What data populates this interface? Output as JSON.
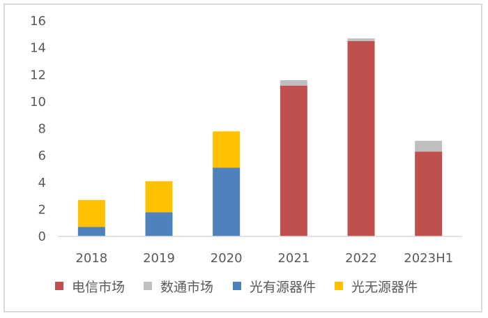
{
  "chart_data": {
    "type": "bar",
    "stacked": true,
    "title": "",
    "xlabel": "",
    "ylabel": "",
    "ylim": [
      0,
      16
    ],
    "yticks": [
      0,
      2,
      4,
      6,
      8,
      10,
      12,
      14,
      16
    ],
    "grid": false,
    "legend_position": "bottom",
    "categories": [
      "2018",
      "2019",
      "2020",
      "2021",
      "2022",
      "2023H1"
    ],
    "series": [
      {
        "name": "电信市场",
        "color": "#C0504D",
        "values": [
          0,
          0,
          0,
          11.2,
          14.5,
          6.3
        ]
      },
      {
        "name": "数通市场",
        "color": "#BFBFBF",
        "values": [
          0,
          0,
          0,
          0.4,
          0.2,
          0.8
        ]
      },
      {
        "name": "光有源器件",
        "color": "#4F81BD",
        "values": [
          0.7,
          1.8,
          5.1,
          0,
          0,
          0
        ]
      },
      {
        "name": "光无源器件",
        "color": "#FFC000",
        "values": [
          2.0,
          2.3,
          2.7,
          0,
          0,
          0
        ]
      }
    ]
  },
  "colors": {
    "text": "#595959",
    "axis": "#d9d9d9",
    "border": "#d9d9d9"
  }
}
